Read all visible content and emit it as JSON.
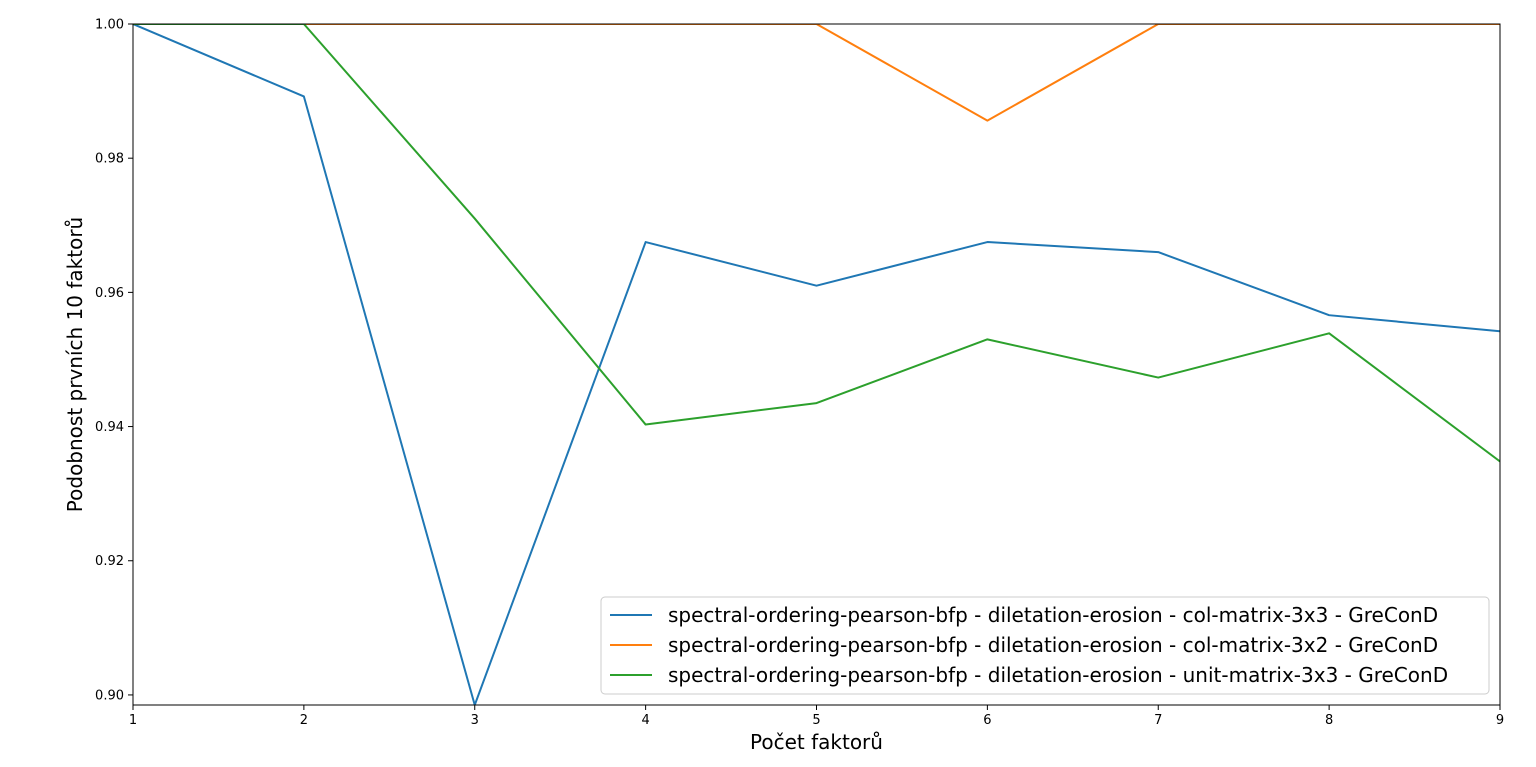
{
  "chart_data": {
    "type": "line",
    "xlabel": "Počet faktorů",
    "ylabel": "Podobnost prvních 10 faktorů",
    "xlim": [
      1,
      9
    ],
    "ylim": [
      0.8985,
      1.0
    ],
    "x_ticks": [
      "1",
      "2",
      "3",
      "4",
      "5",
      "6",
      "7",
      "8",
      "9"
    ],
    "y_ticks": [
      "0.90",
      "0.92",
      "0.94",
      "0.96",
      "0.98",
      "1.00"
    ],
    "x": [
      1,
      2,
      3,
      4,
      5,
      6,
      7,
      8,
      9
    ],
    "grid": false,
    "legend_position": "lower-right",
    "series": [
      {
        "name": "spectral-ordering-pearson-bfp - diletation-erosion - col-matrix-3x3 - GreConD",
        "color": "#1f77b4",
        "values": [
          1.0,
          0.9892,
          0.8985,
          0.9675,
          0.961,
          0.9675,
          0.966,
          0.9566,
          0.9542
        ]
      },
      {
        "name": "spectral-ordering-pearson-bfp - diletation-erosion - col-matrix-3x2 - GreConD",
        "color": "#ff7f0e",
        "values": [
          1.0,
          1.0,
          1.0,
          1.0,
          1.0,
          0.9856,
          1.0,
          1.0,
          1.0
        ]
      },
      {
        "name": "spectral-ordering-pearson-bfp - diletation-erosion - unit-matrix-3x3 - GreConD",
        "color": "#2ca02c",
        "values": [
          1.0,
          1.0,
          0.971,
          0.9403,
          0.9435,
          0.953,
          0.9473,
          0.9539,
          0.9348
        ]
      }
    ]
  }
}
